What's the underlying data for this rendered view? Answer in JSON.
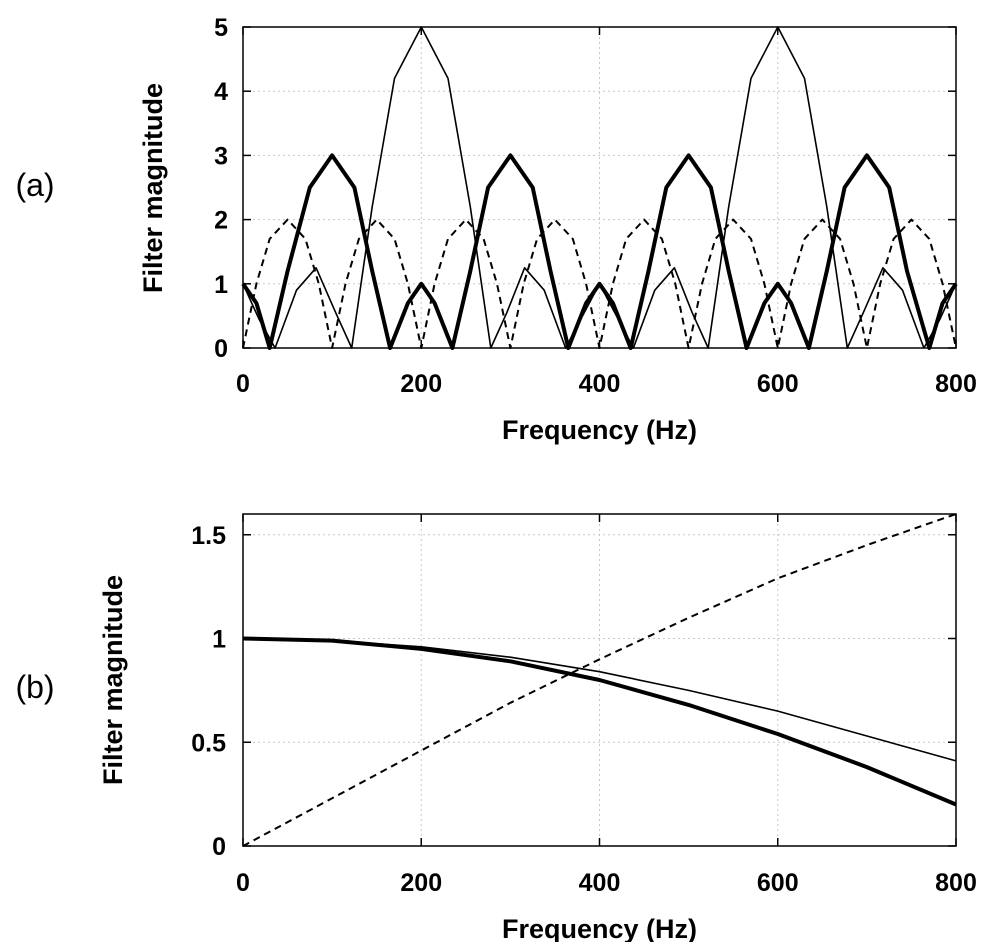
{
  "chart_data": [
    {
      "panel_label": "(a)",
      "type": "line",
      "xlabel": "Frequency (Hz)",
      "ylabel": "Filter magnitude",
      "xlim": [
        0,
        800
      ],
      "ylim": [
        0,
        5
      ],
      "xticks": [
        0,
        200,
        400,
        600,
        800
      ],
      "xtick_labels": [
        "0",
        "200",
        "400",
        "600",
        "800"
      ],
      "yticks": [
        0,
        1,
        2,
        3,
        4,
        5
      ],
      "ytick_labels": [
        "0",
        "1",
        "2",
        "3",
        "4",
        "5"
      ],
      "grid": true,
      "series": [
        {
          "style": "thick-solid",
          "color": "#000000",
          "x": [
            0,
            15,
            30,
            50,
            75,
            100,
            125,
            145,
            165,
            185,
            200,
            215,
            235,
            255,
            275,
            300,
            325,
            345,
            365,
            385,
            400,
            415,
            435,
            455,
            475,
            500,
            525,
            545,
            565,
            585,
            600,
            615,
            635,
            655,
            675,
            700,
            725,
            745,
            770,
            785,
            800
          ],
          "y": [
            1,
            0.7,
            0,
            1.2,
            2.5,
            3,
            2.5,
            1.2,
            0,
            0.7,
            1,
            0.7,
            0,
            1.2,
            2.5,
            3,
            2.5,
            1.2,
            0,
            0.7,
            1,
            0.7,
            0,
            1.2,
            2.5,
            3,
            2.5,
            1.2,
            0,
            0.7,
            1,
            0.7,
            0,
            1.2,
            2.5,
            3,
            2.5,
            1.2,
            0,
            0.7,
            1
          ]
        },
        {
          "style": "thin-solid",
          "color": "#000000",
          "x": [
            0,
            18,
            36,
            60,
            82,
            104,
            122,
            145,
            170,
            200,
            230,
            255,
            278,
            296,
            316,
            338,
            362,
            400,
            438,
            462,
            484,
            504,
            522,
            545,
            570,
            600,
            630,
            655,
            678,
            696,
            718,
            740,
            764,
            782,
            800
          ],
          "y": [
            1,
            0.45,
            0,
            0.9,
            1.25,
            0.55,
            0,
            2.2,
            4.2,
            5,
            4.2,
            2.2,
            0,
            0.55,
            1.25,
            0.9,
            0,
            1,
            0,
            0.9,
            1.25,
            0.55,
            0,
            2.2,
            4.2,
            5,
            4.2,
            2.2,
            0,
            0.55,
            1.25,
            0.9,
            0,
            0.45,
            1
          ]
        },
        {
          "style": "dashed",
          "color": "#000000",
          "x": [
            0,
            15,
            30,
            50,
            70,
            85,
            100,
            115,
            130,
            150,
            170,
            185,
            200,
            215,
            230,
            250,
            270,
            285,
            300,
            315,
            330,
            350,
            370,
            385,
            400,
            415,
            430,
            450,
            470,
            485,
            500,
            515,
            530,
            550,
            570,
            585,
            600,
            615,
            630,
            650,
            670,
            685,
            700,
            715,
            730,
            750,
            770,
            785,
            800
          ],
          "y": [
            0,
            1,
            1.7,
            2,
            1.7,
            1,
            0,
            1,
            1.7,
            2,
            1.7,
            1,
            0,
            1,
            1.7,
            2,
            1.7,
            1,
            0,
            1,
            1.7,
            2,
            1.7,
            1,
            0,
            1,
            1.7,
            2,
            1.7,
            1,
            0,
            1,
            1.7,
            2,
            1.7,
            1,
            0,
            1,
            1.7,
            2,
            1.7,
            1,
            0,
            1,
            1.7,
            2,
            1.7,
            1,
            0
          ]
        }
      ]
    },
    {
      "panel_label": "(b)",
      "type": "line",
      "xlabel": "Frequency (Hz)",
      "ylabel": "Filter magnitude",
      "xlim": [
        0,
        800
      ],
      "ylim": [
        0,
        1.6
      ],
      "xticks": [
        0,
        200,
        400,
        600,
        800
      ],
      "xtick_labels": [
        "0",
        "200",
        "400",
        "600",
        "800"
      ],
      "yticks": [
        0,
        0.5,
        1,
        1.5
      ],
      "ytick_labels": [
        "0",
        "0.5",
        "1",
        "1.5"
      ],
      "grid": true,
      "series": [
        {
          "style": "thick-solid",
          "color": "#000000",
          "x": [
            0,
            100,
            200,
            300,
            400,
            500,
            600,
            700,
            800
          ],
          "y": [
            1,
            0.99,
            0.95,
            0.89,
            0.8,
            0.68,
            0.54,
            0.38,
            0.2
          ]
        },
        {
          "style": "thin-solid",
          "color": "#000000",
          "x": [
            0,
            100,
            200,
            300,
            400,
            500,
            600,
            700,
            800
          ],
          "y": [
            1,
            0.99,
            0.96,
            0.91,
            0.84,
            0.75,
            0.65,
            0.53,
            0.41
          ]
        },
        {
          "style": "dashed",
          "color": "#000000",
          "x": [
            0,
            100,
            200,
            300,
            400,
            500,
            600,
            700,
            800
          ],
          "y": [
            0,
            0.23,
            0.46,
            0.69,
            0.9,
            1.1,
            1.29,
            1.45,
            1.6
          ]
        }
      ]
    }
  ]
}
